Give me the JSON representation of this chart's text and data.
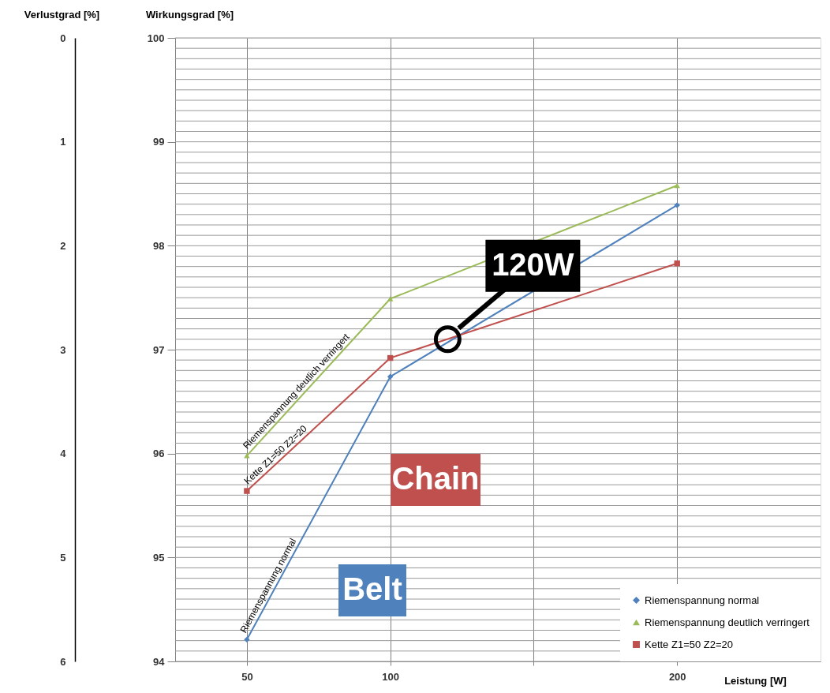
{
  "chart_data": {
    "type": "line",
    "xlabel": "Leistung [W]",
    "ylabel": "Wirkungsgrad [%]",
    "y2label": "Verlustgrad [%]",
    "x": [
      50,
      100,
      200
    ],
    "series": [
      {
        "name": "Riemenspannung normal",
        "color": "#4f81bd",
        "marker": "diamond",
        "values": [
          94.21,
          96.74,
          98.39
        ]
      },
      {
        "name": "Riemenspannung deutlich verringert",
        "color": "#9bbb59",
        "marker": "triangle",
        "values": [
          95.98,
          97.49,
          98.58
        ]
      },
      {
        "name": "Kette Z1=50 Z2=20",
        "color": "#c0504d",
        "marker": "square",
        "values": [
          95.64,
          96.92,
          97.83
        ]
      }
    ],
    "xlim": [
      25,
      250
    ],
    "xticks": [
      50,
      100,
      {
        "value": 150,
        "label": null
      },
      200
    ],
    "ylim": [
      94,
      100
    ],
    "yticks": [
      94,
      {
        "value": 94.1,
        "label": null
      },
      {
        "value": 94.2,
        "label": null
      },
      {
        "value": 94.3,
        "label": null
      },
      {
        "value": 94.4,
        "label": null
      },
      {
        "value": 94.5,
        "label": null
      },
      {
        "value": 94.6,
        "label": null
      },
      {
        "value": 94.7,
        "label": null
      },
      {
        "value": 94.8,
        "label": null
      },
      {
        "value": 94.9,
        "label": null
      },
      95,
      {
        "value": 95.1,
        "label": null
      },
      {
        "value": 95.2,
        "label": null
      },
      {
        "value": 95.3,
        "label": null
      },
      {
        "value": 95.4,
        "label": null
      },
      {
        "value": 95.5,
        "label": null
      },
      {
        "value": 95.6,
        "label": null
      },
      {
        "value": 95.7,
        "label": null
      },
      {
        "value": 95.8,
        "label": null
      },
      {
        "value": 95.9,
        "label": null
      },
      96,
      {
        "value": 96.1,
        "label": null
      },
      {
        "value": 96.2,
        "label": null
      },
      {
        "value": 96.3,
        "label": null
      },
      {
        "value": 96.4,
        "label": null
      },
      {
        "value": 96.5,
        "label": null
      },
      {
        "value": 96.6,
        "label": null
      },
      {
        "value": 96.7,
        "label": null
      },
      {
        "value": 96.8,
        "label": null
      },
      {
        "value": 96.9,
        "label": null
      },
      97,
      {
        "value": 97.1,
        "label": null
      },
      {
        "value": 97.2,
        "label": null
      },
      {
        "value": 97.3,
        "label": null
      },
      {
        "value": 97.4,
        "label": null
      },
      {
        "value": 97.5,
        "label": null
      },
      {
        "value": 97.6,
        "label": null
      },
      {
        "value": 97.7,
        "label": null
      },
      {
        "value": 97.8,
        "label": null
      },
      {
        "value": 97.9,
        "label": null
      },
      98,
      {
        "value": 98.1,
        "label": null
      },
      {
        "value": 98.2,
        "label": null
      },
      {
        "value": 98.3,
        "label": null
      },
      {
        "value": 98.4,
        "label": null
      },
      {
        "value": 98.5,
        "label": null
      },
      {
        "value": 98.6,
        "label": null
      },
      {
        "value": 98.7,
        "label": null
      },
      {
        "value": 98.8,
        "label": null
      },
      {
        "value": 98.9,
        "label": null
      },
      99,
      {
        "value": 99.1,
        "label": null
      },
      {
        "value": 99.2,
        "label": null
      },
      {
        "value": 99.3,
        "label": null
      },
      {
        "value": 99.4,
        "label": null
      },
      {
        "value": 99.5,
        "label": null
      },
      {
        "value": 99.6,
        "label": null
      },
      {
        "value": 99.7,
        "label": null
      },
      {
        "value": 99.8,
        "label": null
      },
      {
        "value": 99.9,
        "label": null
      },
      100
    ],
    "y2lim": [
      6,
      0
    ],
    "y2ticks": [
      0,
      1,
      2,
      3,
      4,
      5,
      6
    ],
    "annotations": [
      "Chain",
      "Belt",
      {
        "text": "120W",
        "x": 120,
        "y": 97.1
      }
    ],
    "grid": true,
    "legend": "bottom right",
    "line_style": "solid"
  }
}
